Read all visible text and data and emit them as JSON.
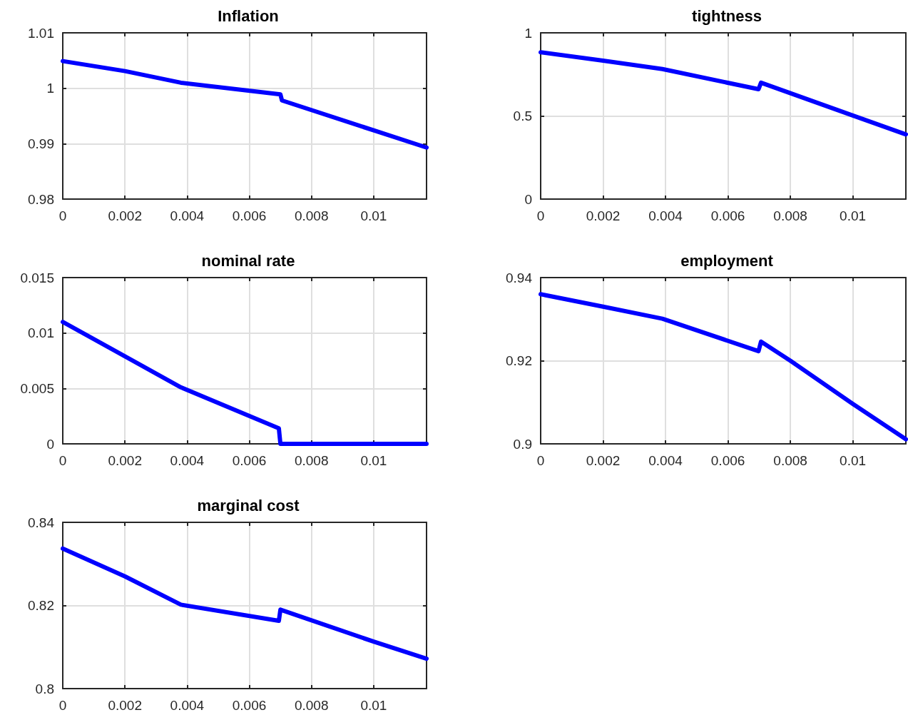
{
  "chart_data": [
    {
      "type": "line",
      "title": "Inflation",
      "series": [
        {
          "color": "#0000ff",
          "x": [
            0,
            0.002,
            0.0038,
            0.007,
            0.00705,
            0.01,
            0.0117
          ],
          "values": [
            1.0049,
            1.0031,
            1.001,
            0.9989,
            0.9978,
            0.9924,
            0.9893
          ]
        }
      ],
      "xlim": [
        0,
        0.0117
      ],
      "xticks": [
        0,
        0.002,
        0.004,
        0.006,
        0.008,
        0.01
      ],
      "ylim": [
        0.98,
        1.01
      ],
      "yticks": [
        0.98,
        0.99,
        1,
        1.01
      ],
      "grid": true,
      "marker": "none",
      "line_style": "solid"
    },
    {
      "type": "line",
      "title": "tightness",
      "series": [
        {
          "color": "#0000ff",
          "x": [
            0,
            0.002,
            0.0039,
            0.00698,
            0.00706,
            0.01,
            0.0117
          ],
          "values": [
            0.883,
            0.833,
            0.782,
            0.661,
            0.7,
            0.503,
            0.389
          ]
        }
      ],
      "xlim": [
        0,
        0.0117
      ],
      "xticks": [
        0,
        0.002,
        0.004,
        0.006,
        0.008,
        0.01
      ],
      "ylim": [
        0,
        1
      ],
      "yticks": [
        0,
        0.5,
        1
      ],
      "grid": true,
      "marker": "none",
      "line_style": "solid"
    },
    {
      "type": "line",
      "title": "nominal rate",
      "series": [
        {
          "color": "#0000ff",
          "x": [
            0,
            0.0038,
            0.00695,
            0.007,
            0.0117
          ],
          "values": [
            0.011,
            0.0051,
            0.0014,
            0,
            0
          ]
        }
      ],
      "xlim": [
        0,
        0.0117
      ],
      "xticks": [
        0,
        0.002,
        0.004,
        0.006,
        0.008,
        0.01
      ],
      "ylim": [
        0,
        0.015
      ],
      "yticks": [
        0,
        0.005,
        0.01,
        0.015
      ],
      "grid": true,
      "marker": "none",
      "line_style": "solid"
    },
    {
      "type": "line",
      "title": "employment",
      "series": [
        {
          "color": "#0000ff",
          "x": [
            0,
            0.002,
            0.0039,
            0.00698,
            0.00706,
            0.008,
            0.01,
            0.0117
          ],
          "values": [
            0.936,
            0.933,
            0.9301,
            0.9223,
            0.9246,
            0.92,
            0.9096,
            0.9011
          ]
        }
      ],
      "xlim": [
        0,
        0.0117
      ],
      "xticks": [
        0,
        0.002,
        0.004,
        0.006,
        0.008,
        0.01
      ],
      "ylim": [
        0.9,
        0.94
      ],
      "yticks": [
        0.9,
        0.92,
        0.94
      ],
      "grid": true,
      "marker": "none",
      "line_style": "solid"
    },
    {
      "type": "line",
      "title": "marginal cost",
      "series": [
        {
          "color": "#0000ff",
          "x": [
            0,
            0.002,
            0.0038,
            0.00695,
            0.007,
            0.01,
            0.0117
          ],
          "values": [
            0.8337,
            0.827,
            0.8202,
            0.8163,
            0.819,
            0.8113,
            0.8072
          ]
        }
      ],
      "xlim": [
        0,
        0.0117
      ],
      "xticks": [
        0,
        0.002,
        0.004,
        0.006,
        0.008,
        0.01
      ],
      "ylim": [
        0.8,
        0.84
      ],
      "yticks": [
        0.8,
        0.82,
        0.84
      ],
      "grid": true,
      "marker": "none",
      "line_style": "solid"
    }
  ]
}
